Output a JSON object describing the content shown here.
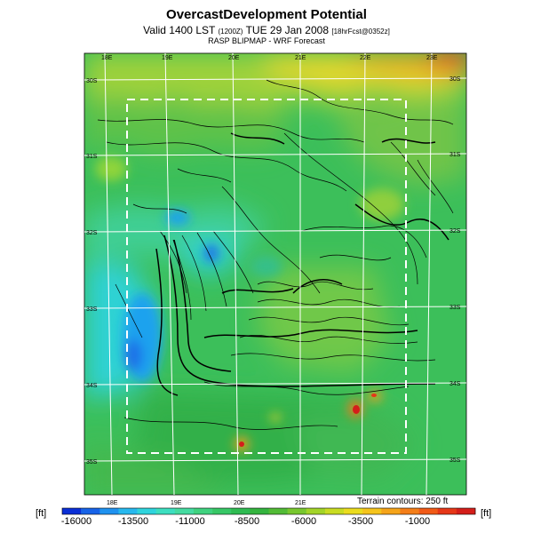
{
  "header": {
    "title": "OvercastDevelopment Potential",
    "valid_prefix": "Valid 1400 LST",
    "valid_utc": "(1200Z)",
    "valid_date": "TUE 29 Jan 2008",
    "forecast_tag": "[18hrFcst@0352z]",
    "subtitle": "RASP BLIPMAP - WRF Forecast"
  },
  "map": {
    "top_lon_labels": [
      "18E",
      "19E",
      "20E",
      "21E",
      "22E",
      "23E"
    ],
    "bottom_lon_labels": [
      "18E",
      "19E",
      "20E",
      "21E"
    ],
    "left_lat_labels": [
      "30S",
      "31S",
      "32S",
      "33S",
      "34S",
      "35S"
    ],
    "right_lat_labels": [
      "30S",
      "31S",
      "32S",
      "33S",
      "34S",
      "35S"
    ],
    "terrain_note": "Terrain contours: 250 ft"
  },
  "colorbar": {
    "unit_left": "[ft]",
    "unit_right": "[ft]",
    "tick_labels": [
      "-16000",
      "-13500",
      "-11000",
      "-8500",
      "-6000",
      "-3500",
      "-1000"
    ],
    "colors": [
      "#0a2fd6",
      "#1763e8",
      "#1f92ef",
      "#27b8ee",
      "#2fd4dd",
      "#3ddfc0",
      "#45dba1",
      "#3fd27f",
      "#37c766",
      "#2fbb52",
      "#34b43f",
      "#52bb36",
      "#78c72e",
      "#a3d428",
      "#c9dc22",
      "#ebdc1e",
      "#f5c41c",
      "#f5a41a",
      "#f47e18",
      "#f15a17",
      "#e63718",
      "#d41e1a"
    ]
  }
}
